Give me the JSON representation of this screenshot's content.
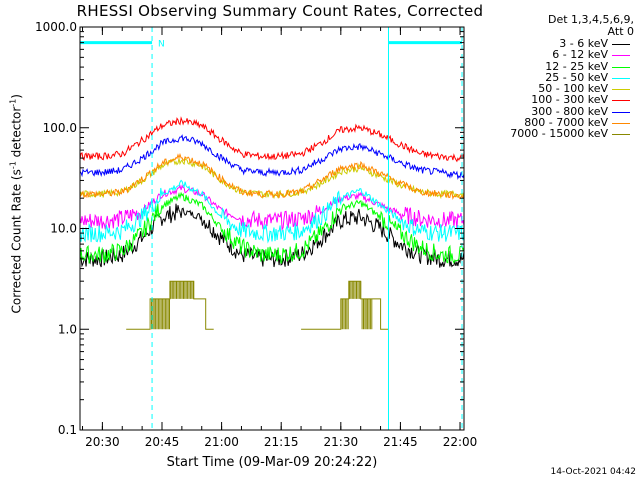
{
  "header": {
    "title": "RHESSI Observing Summary Count Rates, Corrected"
  },
  "axes": {
    "ylabel": "Corrected Count Rate (s",
    "ylabel_sup": "-1",
    "ylabel_mid": " detector",
    "ylabel_sup2": "-1",
    "ylabel_end": ")",
    "xlabel": "Start Time (09-Mar-09 20:24:22)"
  },
  "footer": {
    "stamp": "14-Oct-2021 04:42"
  },
  "legend": {
    "header_line1": "Det 1,3,4,5,6,9,",
    "header_line2": "Att 0",
    "entries": [
      {
        "label": "3 - 6 keV",
        "color": "#000000"
      },
      {
        "label": "6 - 12 keV",
        "color": "#ff00ff"
      },
      {
        "label": "12 - 25 keV",
        "color": "#00ff00"
      },
      {
        "label": "25 - 50 keV",
        "color": "#00ffff"
      },
      {
        "label": "50 - 100 keV",
        "color": "#cccc00"
      },
      {
        "label": "100 - 300 keV",
        "color": "#ff0000"
      },
      {
        "label": "300 - 800 keV",
        "color": "#0000ff"
      },
      {
        "label": "800 - 7000 keV",
        "color": "#ff8800"
      },
      {
        "label": "7000 - 15000 keV",
        "color": "#888800"
      }
    ]
  },
  "chart_data": {
    "type": "line",
    "title": "RHESSI Observing Summary Count Rates, Corrected",
    "xlabel": "Start Time (09-Mar-09 20:24:22)",
    "ylabel": "Corrected Count Rate (s^-1 detector^-1)",
    "y_scale": "log",
    "ylim": [
      0.1,
      1000.0
    ],
    "xlim": [
      "20:24:22",
      "22:01:00"
    ],
    "x_ticks": [
      "20:30",
      "20:45",
      "21:00",
      "21:15",
      "21:30",
      "21:45",
      "22:00"
    ],
    "y_ticks": [
      "0.1",
      "1.0",
      "10.0",
      "100.0",
      "1000.0"
    ],
    "grid": false,
    "legend_position": "right",
    "annotations": [
      {
        "type": "night-bar",
        "label": "N",
        "start": "20:24:22",
        "end": "20:42:30",
        "value": 700
      },
      {
        "type": "night-bar",
        "label": "",
        "start": "21:42:00",
        "end": "22:00:30",
        "value": 700
      }
    ],
    "vertical_markers": [
      "20:24:22",
      "20:42:30",
      "21:42:00",
      "22:00:30"
    ],
    "marker_color": "#00ffff",
    "x": [
      "20:25",
      "20:30",
      "20:35",
      "20:40",
      "20:45",
      "20:50",
      "20:55",
      "21:00",
      "21:05",
      "21:10",
      "21:15",
      "21:20",
      "21:25",
      "21:30",
      "21:35",
      "21:40",
      "21:45",
      "21:50",
      "21:55",
      "22:00"
    ],
    "series": [
      {
        "name": "3 - 6 keV",
        "color": "#000000",
        "values": [
          5,
          5,
          5.5,
          8,
          13,
          15,
          13,
          8,
          5.5,
          5,
          5,
          5.5,
          8,
          12,
          13,
          10,
          7,
          5.5,
          5,
          5
        ]
      },
      {
        "name": "6 - 12 keV",
        "color": "#ff00ff",
        "values": [
          12,
          12,
          12.5,
          15,
          22,
          25,
          22,
          15,
          12.5,
          12,
          12,
          12.5,
          15,
          20,
          21,
          17,
          14,
          12.5,
          12,
          12
        ]
      },
      {
        "name": "12 - 25 keV",
        "color": "#00ff00",
        "values": [
          5.5,
          5.5,
          6,
          9,
          17,
          21,
          17,
          10,
          6.5,
          5.5,
          5.5,
          6,
          9,
          16,
          18,
          13,
          9,
          6.5,
          5.5,
          5.5
        ]
      },
      {
        "name": "25 - 50 keV",
        "color": "#00ffff",
        "values": [
          9,
          9,
          9.5,
          13,
          22,
          28,
          22,
          13,
          9.5,
          9,
          9,
          9.5,
          13,
          20,
          24,
          17,
          12,
          9.5,
          9,
          9
        ]
      },
      {
        "name": "50 - 100 keV",
        "color": "#cccc00",
        "values": [
          22,
          22,
          23,
          30,
          42,
          48,
          42,
          30,
          23,
          22,
          22,
          23,
          28,
          37,
          40,
          33,
          27,
          23,
          22,
          22
        ]
      },
      {
        "name": "100 - 300 keV",
        "color": "#ff0000",
        "values": [
          52,
          52,
          55,
          75,
          105,
          118,
          105,
          75,
          55,
          52,
          52,
          55,
          70,
          95,
          100,
          85,
          68,
          55,
          52,
          50
        ]
      },
      {
        "name": "300 - 800 keV",
        "color": "#0000ff",
        "values": [
          36,
          36,
          38,
          50,
          70,
          80,
          70,
          50,
          38,
          36,
          36,
          38,
          48,
          62,
          65,
          55,
          45,
          38,
          36,
          34
        ]
      },
      {
        "name": "800 - 7000 keV",
        "color": "#ff8800",
        "values": [
          22,
          22,
          23,
          31,
          44,
          52,
          44,
          31,
          23,
          22,
          22,
          23,
          30,
          40,
          43,
          35,
          28,
          23,
          22,
          21
        ]
      }
    ],
    "step_series": {
      "name": "7000 - 15000 keV",
      "color": "#888800",
      "segments": [
        {
          "start": "20:36",
          "end": "20:58",
          "t": [
            "20:36",
            "20:40",
            "20:42",
            "20:45",
            "20:47",
            "20:50",
            "20:53",
            "20:56",
            "20:58"
          ],
          "values": [
            1.0,
            1.0,
            2.0,
            2.0,
            3.0,
            3.0,
            2.0,
            1.0,
            1.0
          ]
        },
        {
          "start": "21:20",
          "end": "21:42",
          "t": [
            "21:20",
            "21:25",
            "21:28",
            "21:30",
            "21:32",
            "21:35",
            "21:38",
            "21:40",
            "21:42"
          ],
          "values": [
            1.0,
            1.0,
            1.0,
            2.0,
            3.0,
            2.0,
            2.0,
            1.0,
            1.0
          ]
        }
      ]
    }
  }
}
